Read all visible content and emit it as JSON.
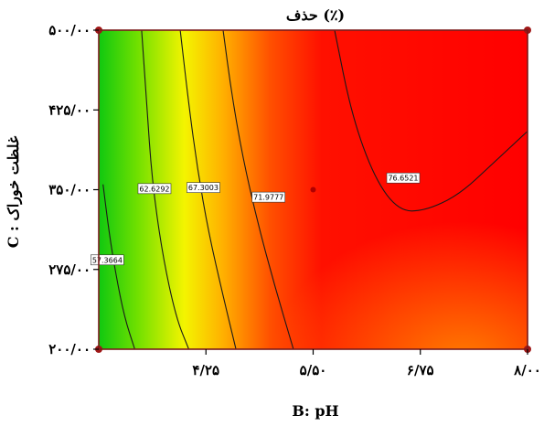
{
  "chart_data": {
    "type": "contour",
    "title": "حذف (٪)",
    "xlabel": "B: pH",
    "ylabel": "C : غلظت خوراک",
    "xlim": [
      3.0,
      8.0
    ],
    "ylim": [
      200,
      500
    ],
    "x_ticks": [
      {
        "value": 4.25,
        "label": "۴/۲۵"
      },
      {
        "value": 5.5,
        "label": "۵/۵۰"
      },
      {
        "value": 6.75,
        "label": "۶/۷۵"
      },
      {
        "value": 8.0,
        "label": "۸/۰۰"
      }
    ],
    "y_ticks": [
      {
        "value": 200,
        "label": "۲۰۰/۰۰"
      },
      {
        "value": 275,
        "label": "۲۷۵/۰۰"
      },
      {
        "value": 350,
        "label": "۳۵۰/۰۰"
      },
      {
        "value": 425,
        "label": "۴۲۵/۰۰"
      },
      {
        "value": 500,
        "label": "۵۰۰/۰۰"
      }
    ],
    "contours": [
      {
        "label": "57.3664",
        "points": [
          [
            3.05,
            355
          ],
          [
            3.12,
            310
          ],
          [
            3.2,
            270
          ],
          [
            3.3,
            230
          ],
          [
            3.42,
            200
          ]
        ],
        "label_at": [
          3.1,
          284
        ]
      },
      {
        "label": "62.6292",
        "points": [
          [
            3.5,
            500
          ],
          [
            3.56,
            430
          ],
          [
            3.62,
            360
          ],
          [
            3.74,
            290
          ],
          [
            3.9,
            230
          ],
          [
            4.05,
            200
          ]
        ],
        "label_at": [
          3.65,
          351
        ]
      },
      {
        "label": "67.3003",
        "points": [
          [
            3.95,
            500
          ],
          [
            4.05,
            430
          ],
          [
            4.15,
            370
          ],
          [
            4.28,
            310
          ],
          [
            4.45,
            250
          ],
          [
            4.6,
            200
          ]
        ],
        "label_at": [
          4.22,
          352
        ]
      },
      {
        "label": "71.9777",
        "points": [
          [
            4.45,
            500
          ],
          [
            4.55,
            440
          ],
          [
            4.68,
            380
          ],
          [
            4.85,
            320
          ],
          [
            5.05,
            260
          ],
          [
            5.27,
            200
          ]
        ],
        "label_at": [
          4.98,
          343
        ]
      },
      {
        "label": "76.6521",
        "points": [
          [
            5.75,
            500
          ],
          [
            5.95,
            420
          ],
          [
            6.22,
            360
          ],
          [
            6.5,
            330
          ],
          [
            6.8,
            330
          ],
          [
            7.2,
            345
          ],
          [
            7.6,
            375
          ],
          [
            8.0,
            405
          ]
        ],
        "label_at": [
          6.55,
          361
        ]
      }
    ],
    "design_points": [
      {
        "x": 3.0,
        "y": 500
      },
      {
        "x": 8.0,
        "y": 500
      },
      {
        "x": 3.0,
        "y": 200
      },
      {
        "x": 8.0,
        "y": 200
      },
      {
        "x": 5.5,
        "y": 350
      }
    ],
    "colormap": [
      "#00c000",
      "#ffff00",
      "#ff0000"
    ],
    "grid": false
  }
}
